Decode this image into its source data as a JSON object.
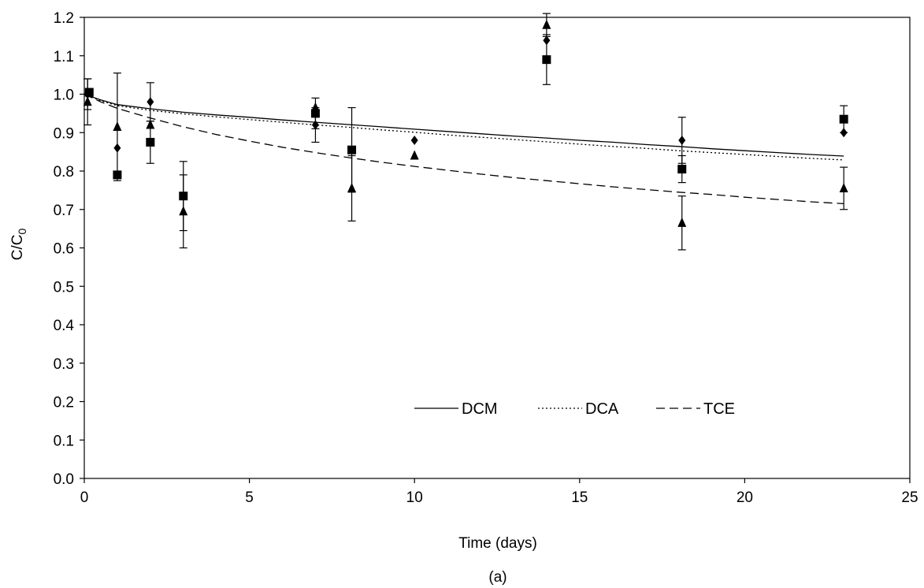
{
  "chart_data": {
    "type": "scatter",
    "caption": "(a)",
    "xlabel": "Time (days)",
    "ylabel": "C/C",
    "ylabel_subscript": "0",
    "xlim": [
      0,
      25
    ],
    "ylim": [
      0,
      1.2
    ],
    "xticks": [
      0,
      5,
      10,
      15,
      20,
      25
    ],
    "yticks": [
      0.0,
      0.1,
      0.2,
      0.3,
      0.4,
      0.5,
      0.6,
      0.7,
      0.8,
      0.9,
      1.0,
      1.1,
      1.2
    ],
    "ytick_labels": [
      "0.0",
      "0.1",
      "0.2",
      "0.3",
      "0.4",
      "0.5",
      "0.6",
      "0.7",
      "0.8",
      "0.9",
      "1.0",
      "1.1",
      "1.2"
    ],
    "grid": false,
    "legend_position": "bottom-right",
    "model_curves": [
      {
        "name": "DCM",
        "dash": "solid",
        "x": [
          0,
          0.5,
          1,
          2,
          3,
          4,
          5,
          6,
          7,
          8,
          9,
          10,
          11,
          12,
          13,
          14,
          15,
          16,
          17,
          18,
          19,
          20,
          21,
          22,
          23
        ],
        "y": [
          1.0,
          0.985,
          0.973,
          0.962,
          0.953,
          0.946,
          0.94,
          0.933,
          0.927,
          0.921,
          0.915,
          0.909,
          0.903,
          0.897,
          0.891,
          0.886,
          0.88,
          0.875,
          0.869,
          0.864,
          0.858,
          0.853,
          0.848,
          0.843,
          0.839
        ]
      },
      {
        "name": "DCA",
        "dash": "dotted",
        "x": [
          0,
          0.5,
          1,
          2,
          3,
          4,
          5,
          6,
          7,
          8,
          9,
          10,
          11,
          12,
          13,
          14,
          15,
          16,
          17,
          18,
          19,
          20,
          21,
          22,
          23
        ],
        "y": [
          1.0,
          0.983,
          0.97,
          0.958,
          0.949,
          0.941,
          0.934,
          0.927,
          0.92,
          0.914,
          0.907,
          0.901,
          0.894,
          0.888,
          0.882,
          0.876,
          0.87,
          0.864,
          0.859,
          0.853,
          0.848,
          0.843,
          0.838,
          0.833,
          0.829
        ]
      },
      {
        "name": "TCE",
        "dash": "dashed",
        "x": [
          0,
          0.5,
          1,
          2,
          3,
          4,
          5,
          6,
          7,
          8,
          9,
          10,
          11,
          12,
          13,
          14,
          15,
          16,
          17,
          18,
          19,
          20,
          21,
          22,
          23
        ],
        "y": [
          1.0,
          0.98,
          0.963,
          0.938,
          0.915,
          0.895,
          0.878,
          0.862,
          0.848,
          0.835,
          0.823,
          0.812,
          0.802,
          0.792,
          0.783,
          0.775,
          0.767,
          0.759,
          0.752,
          0.745,
          0.739,
          0.732,
          0.726,
          0.72,
          0.715
        ]
      }
    ],
    "observations": [
      {
        "marker": "diamond",
        "points": [
          {
            "x": 0.1,
            "y": 1.0,
            "err": 0.04
          },
          {
            "x": 1.0,
            "y": 0.86,
            "err": 0
          },
          {
            "x": 2.0,
            "y": 0.98,
            "err": 0.05
          },
          {
            "x": 7.0,
            "y": 0.92,
            "err": 0.045
          },
          {
            "x": 10.0,
            "y": 0.88,
            "err": 0
          },
          {
            "x": 14.0,
            "y": 1.14,
            "err": 0
          },
          {
            "x": 18.1,
            "y": 0.88,
            "err": 0.06
          },
          {
            "x": 23.0,
            "y": 0.9,
            "err": 0
          }
        ]
      },
      {
        "marker": "square",
        "points": [
          {
            "x": 0.15,
            "y": 1.005,
            "err": 0
          },
          {
            "x": 1.0,
            "y": 0.79,
            "err": 0
          },
          {
            "x": 2.0,
            "y": 0.875,
            "err": 0.055
          },
          {
            "x": 3.0,
            "y": 0.735,
            "err": 0.09
          },
          {
            "x": 7.0,
            "y": 0.95,
            "err": 0.04
          },
          {
            "x": 8.1,
            "y": 0.855,
            "err": 0.11
          },
          {
            "x": 14.0,
            "y": 1.09,
            "err": 0.065
          },
          {
            "x": 18.1,
            "y": 0.805,
            "err": 0.035
          },
          {
            "x": 23.0,
            "y": 0.935,
            "err": 0.035
          }
        ]
      },
      {
        "marker": "triangle",
        "points": [
          {
            "x": 0.1,
            "y": 0.98,
            "err": 0.06
          },
          {
            "x": 1.0,
            "y": 0.915,
            "err": 0.14
          },
          {
            "x": 2.0,
            "y": 0.92,
            "err": 0
          },
          {
            "x": 3.0,
            "y": 0.695,
            "err": 0.095
          },
          {
            "x": 7.0,
            "y": 0.965,
            "err": 0
          },
          {
            "x": 8.1,
            "y": 0.755,
            "err": 0.085
          },
          {
            "x": 10.0,
            "y": 0.84,
            "err": 0
          },
          {
            "x": 14.0,
            "y": 1.18,
            "err": 0.03
          },
          {
            "x": 18.1,
            "y": 0.665,
            "err": 0.07
          },
          {
            "x": 23.0,
            "y": 0.755,
            "err": 0.055
          }
        ]
      }
    ]
  }
}
